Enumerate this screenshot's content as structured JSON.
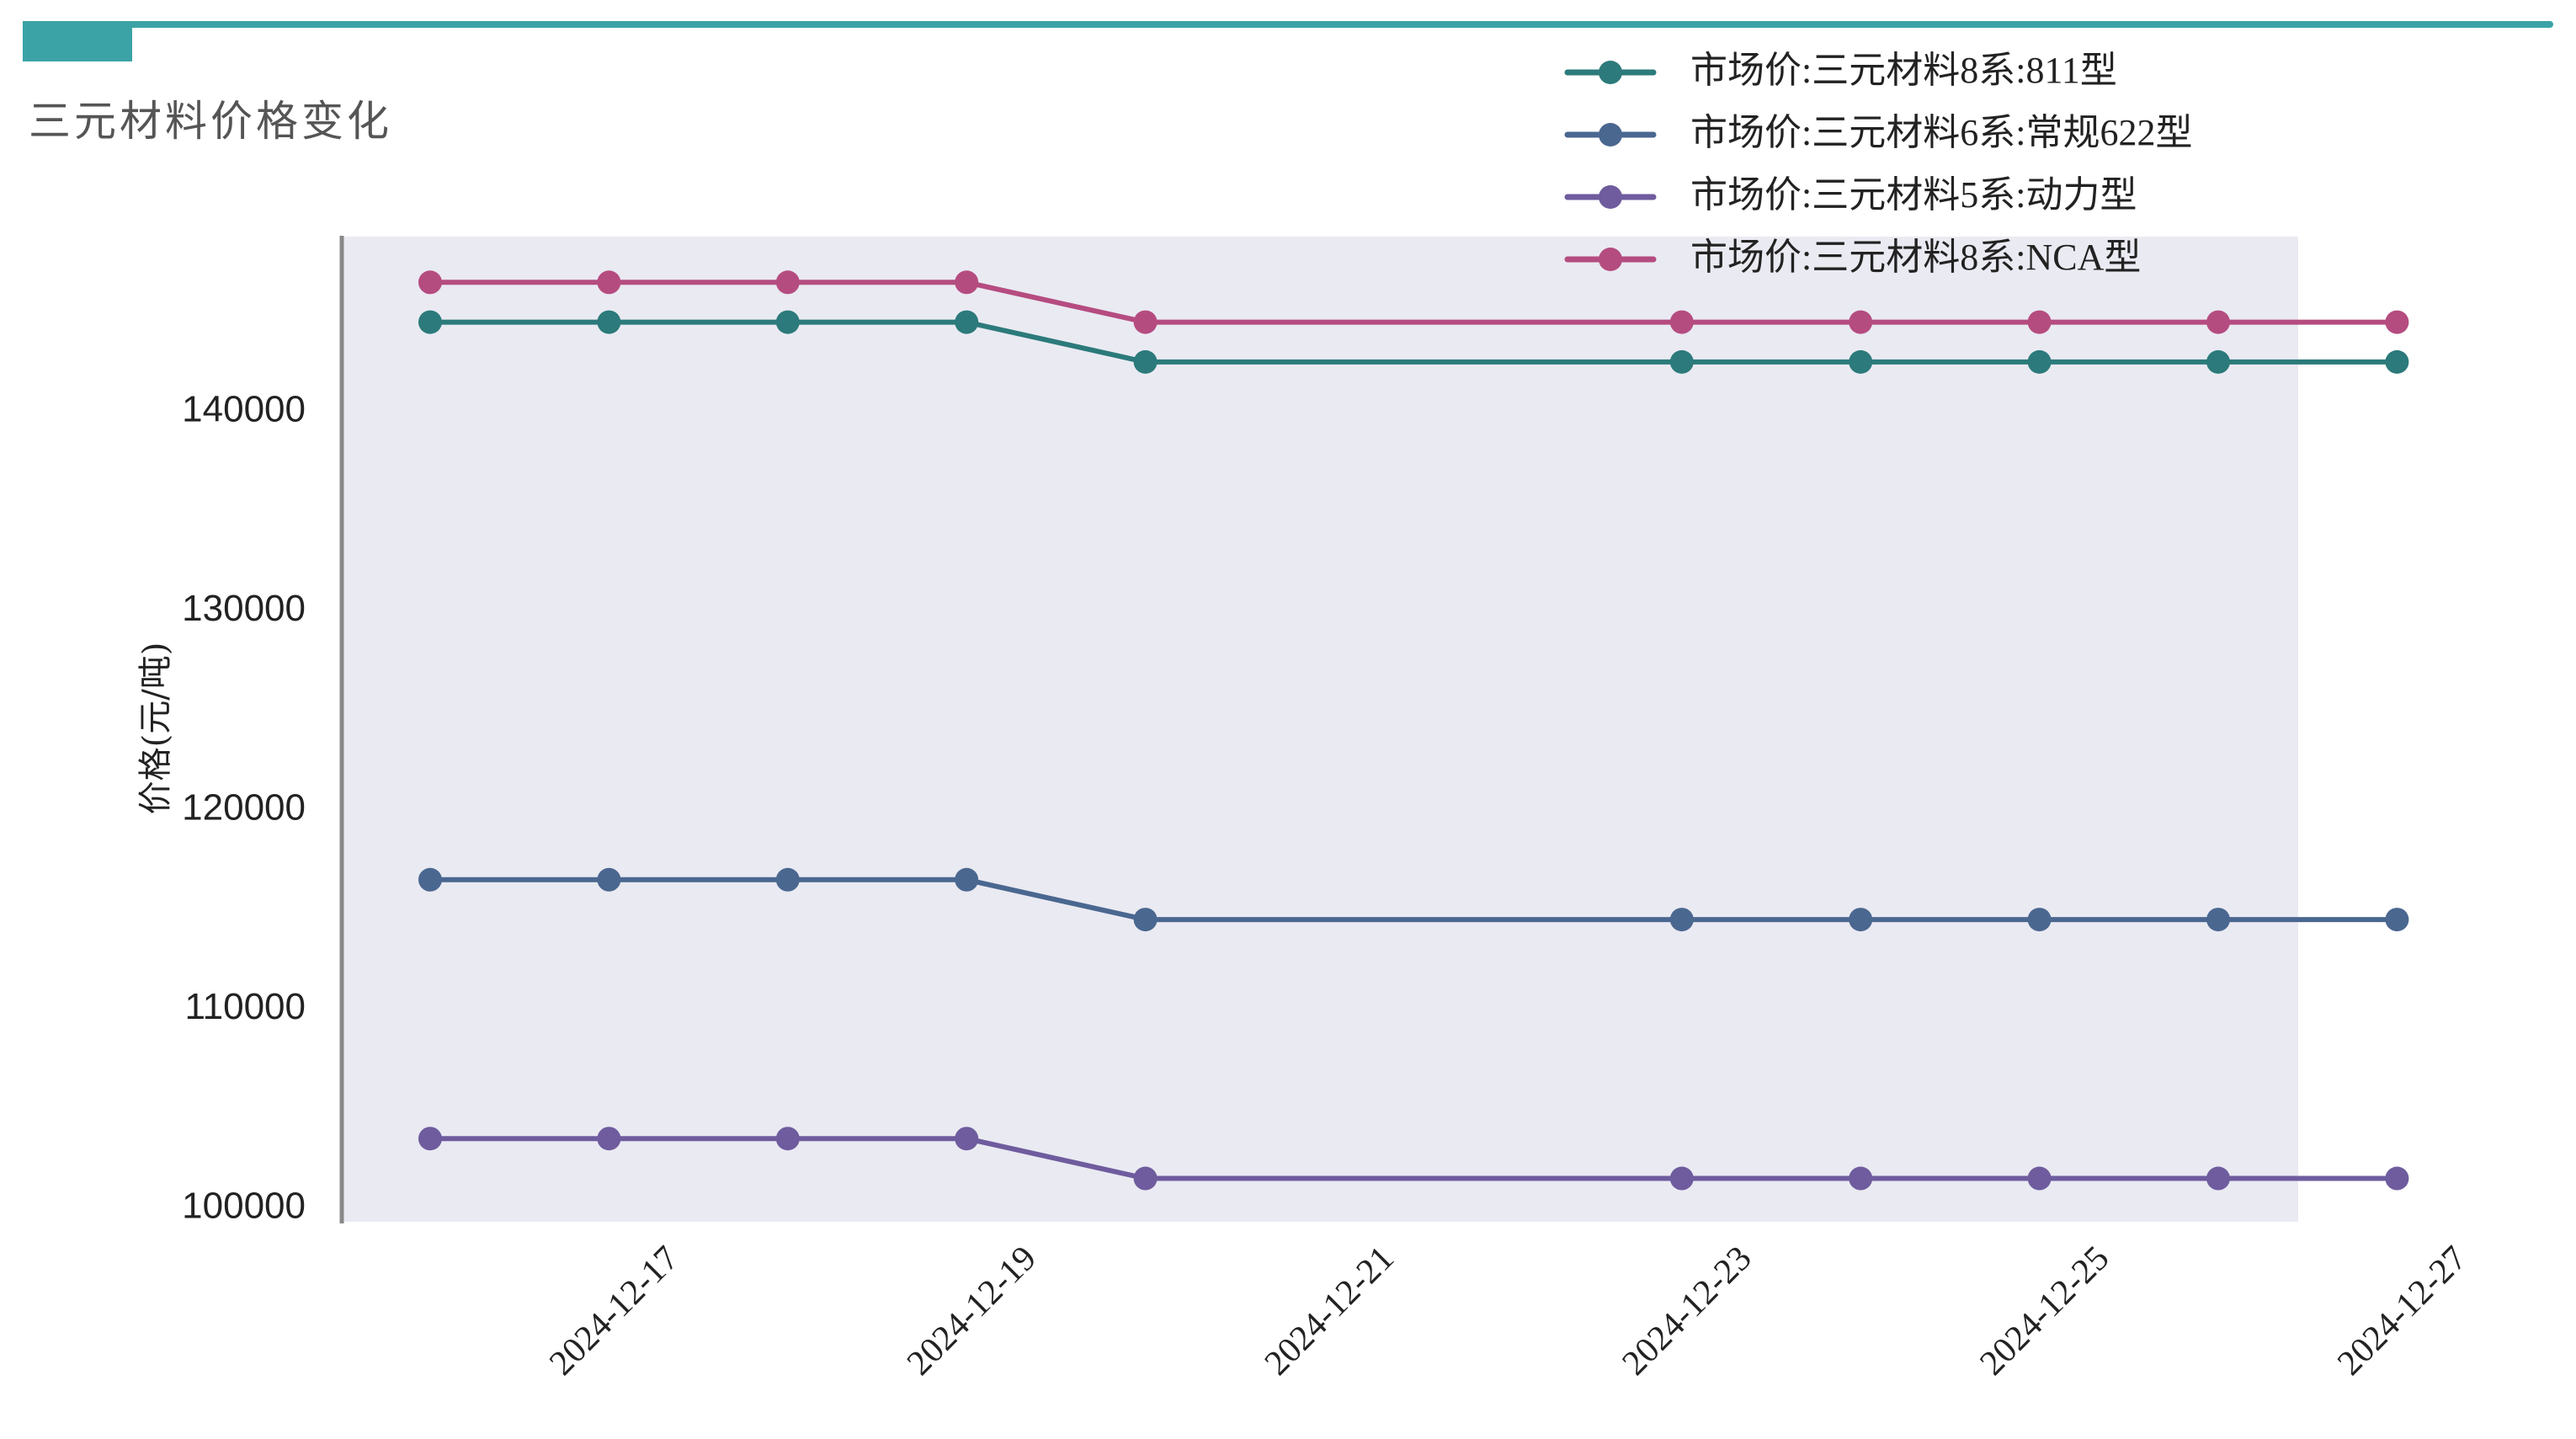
{
  "header": {
    "title": "三元材料价格变化",
    "accent_color": "#3BA3A6"
  },
  "chart_data": {
    "type": "line",
    "title": "三元材料价格变化",
    "xlabel": "",
    "ylabel": "价格(元/吨)",
    "x": [
      "2024-12-16",
      "2024-12-17",
      "2024-12-18",
      "2024-12-19",
      "2024-12-20",
      "2024-12-23",
      "2024-12-24",
      "2024-12-25",
      "2024-12-26",
      "2024-12-27"
    ],
    "x_tick_labels": [
      "2024-12-17",
      "2024-12-19",
      "2024-12-21",
      "2024-12-23",
      "2024-12-25",
      "2024-12-27"
    ],
    "y_tick_labels": [
      "100000",
      "110000",
      "120000",
      "130000",
      "140000"
    ],
    "y_ticks": [
      100000,
      110000,
      120000,
      130000,
      140000
    ],
    "ylim": [
      99000,
      148200
    ],
    "grid": false,
    "legend_position": "upper right (above plot)",
    "plot_background": "#EAEAF2",
    "series": [
      {
        "name": "市场价:三元材料8系:811型",
        "color": "#2C7A7B",
        "values": [
          144500,
          144500,
          144500,
          144500,
          142500,
          142500,
          142500,
          142500,
          142500,
          142500
        ]
      },
      {
        "name": "市场价:三元材料6系:常规622型",
        "color": "#4A6790",
        "values": [
          116500,
          116500,
          116500,
          116500,
          114500,
          114500,
          114500,
          114500,
          114500,
          114500
        ]
      },
      {
        "name": "市场价:三元材料5系:动力型",
        "color": "#6E5C9E",
        "values": [
          103500,
          103500,
          103500,
          103500,
          101500,
          101500,
          101500,
          101500,
          101500,
          101500
        ]
      },
      {
        "name": "市场价:三元材料8系:NCA型",
        "color": "#B54C80",
        "values": [
          146500,
          146500,
          146500,
          146500,
          144500,
          144500,
          144500,
          144500,
          144500,
          144500
        ]
      }
    ]
  }
}
